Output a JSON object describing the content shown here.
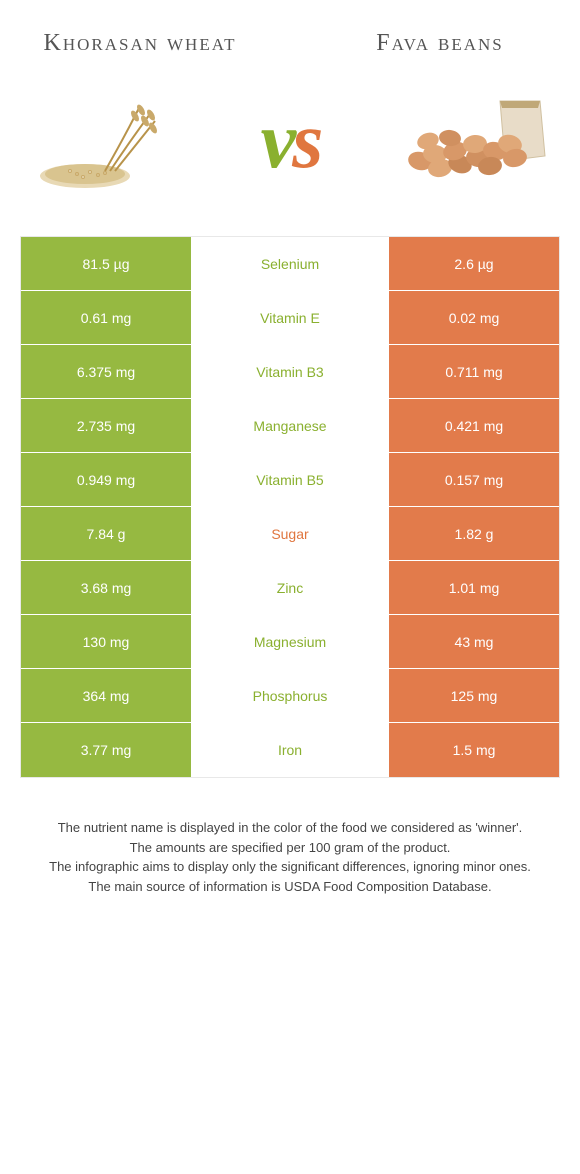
{
  "colors": {
    "left": "#96b941",
    "right": "#e27b4b",
    "mid_left": "#8ab02f",
    "mid_right": "#e0763f"
  },
  "header": {
    "left_title": "Khorasan wheat",
    "right_title": "Fava beans"
  },
  "rows": [
    {
      "left": "81.5 µg",
      "name": "Selenium",
      "right": "2.6 µg",
      "win": "left"
    },
    {
      "left": "0.61 mg",
      "name": "Vitamin E",
      "right": "0.02 mg",
      "win": "left"
    },
    {
      "left": "6.375 mg",
      "name": "Vitamin B3",
      "right": "0.711 mg",
      "win": "left"
    },
    {
      "left": "2.735 mg",
      "name": "Manganese",
      "right": "0.421 mg",
      "win": "left"
    },
    {
      "left": "0.949 mg",
      "name": "Vitamin B5",
      "right": "0.157 mg",
      "win": "left"
    },
    {
      "left": "7.84 g",
      "name": "Sugar",
      "right": "1.82 g",
      "win": "right"
    },
    {
      "left": "3.68 mg",
      "name": "Zinc",
      "right": "1.01 mg",
      "win": "left"
    },
    {
      "left": "130 mg",
      "name": "Magnesium",
      "right": "43 mg",
      "win": "left"
    },
    {
      "left": "364 mg",
      "name": "Phosphorus",
      "right": "125 mg",
      "win": "left"
    },
    {
      "left": "3.77 mg",
      "name": "Iron",
      "right": "1.5 mg",
      "win": "left"
    }
  ],
  "footer": {
    "line1": "The nutrient name is displayed in the color of the food we considered as 'winner'.",
    "line2": "The amounts are specified per 100 gram of the product.",
    "line3": "The infographic aims to display only the significant differences, ignoring minor ones.",
    "line4": "The main source of information is USDA Food Composition Database."
  }
}
